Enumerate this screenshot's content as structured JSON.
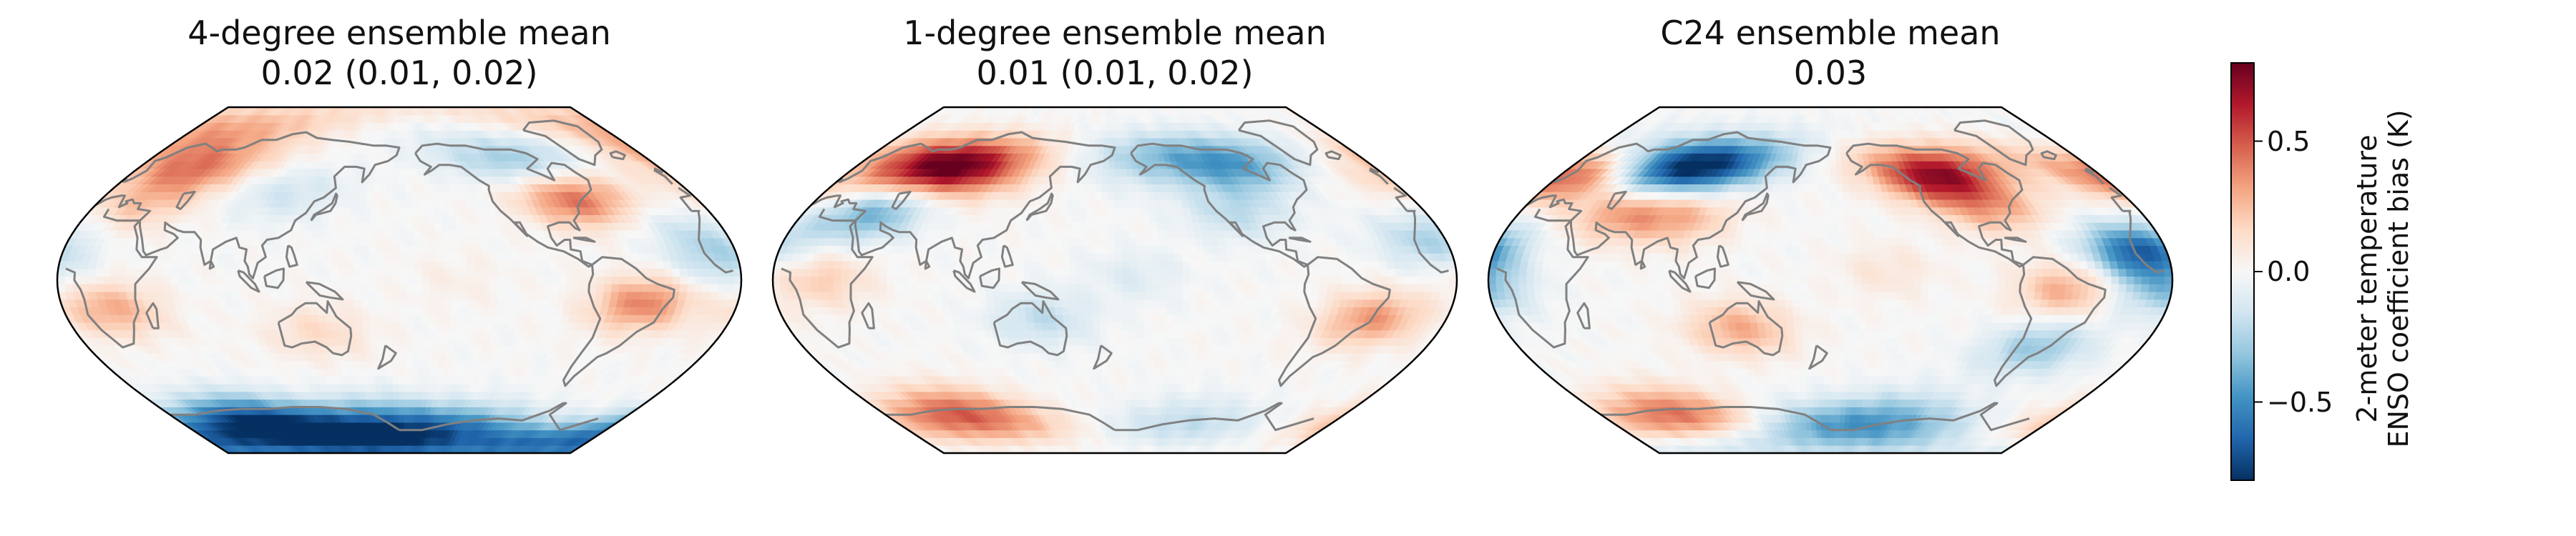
{
  "panels": [
    {
      "title": "4-degree ensemble mean",
      "subtitle": "0.02 (0.01, 0.02)",
      "anomalies": [
        {
          "lon": 40,
          "lat": 58,
          "value": 0.4
        },
        {
          "lon": 25,
          "lat": 38,
          "value": 0.2
        },
        {
          "lon": 110,
          "lat": 45,
          "value": -0.15
        },
        {
          "lon": -100,
          "lat": 62,
          "value": -0.3
        },
        {
          "lon": -75,
          "lat": 42,
          "value": 0.45
        },
        {
          "lon": -50,
          "lat": -12,
          "value": 0.4
        },
        {
          "lon": 25,
          "lat": -15,
          "value": 0.3
        },
        {
          "lon": 135,
          "lat": -27,
          "value": 0.15
        },
        {
          "lon": -15,
          "lat": 25,
          "value": -0.15
        },
        {
          "lon": -10,
          "lat": 10,
          "value": -0.2
        },
        {
          "lon": 60,
          "lat": -75,
          "value": -0.8
        },
        {
          "lon": 160,
          "lat": -75,
          "value": -0.5
        },
        {
          "lon": -120,
          "lat": -78,
          "value": -0.4
        },
        {
          "lon": 20,
          "lat": 78,
          "value": 0.3
        },
        {
          "lon": -150,
          "lat": 0,
          "value": 0.05
        }
      ]
    },
    {
      "title": "1-degree ensemble mean",
      "subtitle": "0.01 (0.01, 0.02)",
      "anomalies": [
        {
          "lon": 60,
          "lat": 60,
          "value": 0.65
        },
        {
          "lon": 90,
          "lat": 55,
          "value": 0.3
        },
        {
          "lon": 10,
          "lat": 50,
          "value": 0.2
        },
        {
          "lon": 40,
          "lat": 35,
          "value": -0.4
        },
        {
          "lon": -100,
          "lat": 60,
          "value": -0.45
        },
        {
          "lon": -110,
          "lat": 35,
          "value": -0.2
        },
        {
          "lon": -160,
          "lat": 62,
          "value": -0.2
        },
        {
          "lon": -40,
          "lat": -20,
          "value": 0.35
        },
        {
          "lon": -10,
          "lat": 20,
          "value": -0.25
        },
        {
          "lon": 25,
          "lat": 0,
          "value": 0.2
        },
        {
          "lon": 140,
          "lat": -20,
          "value": -0.2
        },
        {
          "lon": -170,
          "lat": 2,
          "value": -0.1
        },
        {
          "lon": 60,
          "lat": -70,
          "value": 0.5
        },
        {
          "lon": -120,
          "lat": -75,
          "value": -0.2
        }
      ]
    },
    {
      "title": "C24 ensemble mean",
      "subtitle": "0.03",
      "anomalies": [
        {
          "lon": 10,
          "lat": 55,
          "value": 0.5
        },
        {
          "lon": 70,
          "lat": 58,
          "value": -0.6
        },
        {
          "lon": 105,
          "lat": 60,
          "value": -0.45
        },
        {
          "lon": 60,
          "lat": 35,
          "value": 0.3
        },
        {
          "lon": 95,
          "lat": 32,
          "value": 0.25
        },
        {
          "lon": -110,
          "lat": 55,
          "value": 0.7
        },
        {
          "lon": -85,
          "lat": 38,
          "value": 0.3
        },
        {
          "lon": -15,
          "lat": 15,
          "value": -0.65
        },
        {
          "lon": -5,
          "lat": -5,
          "value": -0.3
        },
        {
          "lon": 130,
          "lat": -25,
          "value": 0.3
        },
        {
          "lon": -55,
          "lat": -5,
          "value": 0.3
        },
        {
          "lon": -60,
          "lat": -35,
          "value": -0.3
        },
        {
          "lon": -150,
          "lat": 5,
          "value": 0.1
        },
        {
          "lon": 60,
          "lat": -70,
          "value": 0.45
        },
        {
          "lon": -130,
          "lat": -72,
          "value": -0.35
        },
        {
          "lon": 160,
          "lat": -78,
          "value": -0.3
        }
      ]
    }
  ],
  "colorbar": {
    "label_line1": "2-meter temperature",
    "label_line2": "ENSO coefficient bias (K)",
    "vmin": -0.8,
    "vmax": 0.8,
    "ticks": [
      "−0.5",
      "0.0",
      "0.5"
    ],
    "tick_values": [
      -0.5,
      0.0,
      0.5
    ],
    "colormap": "RdBu_r"
  },
  "projection": "Robinson",
  "central_longitude": 180,
  "coastline_color": "#808080"
}
